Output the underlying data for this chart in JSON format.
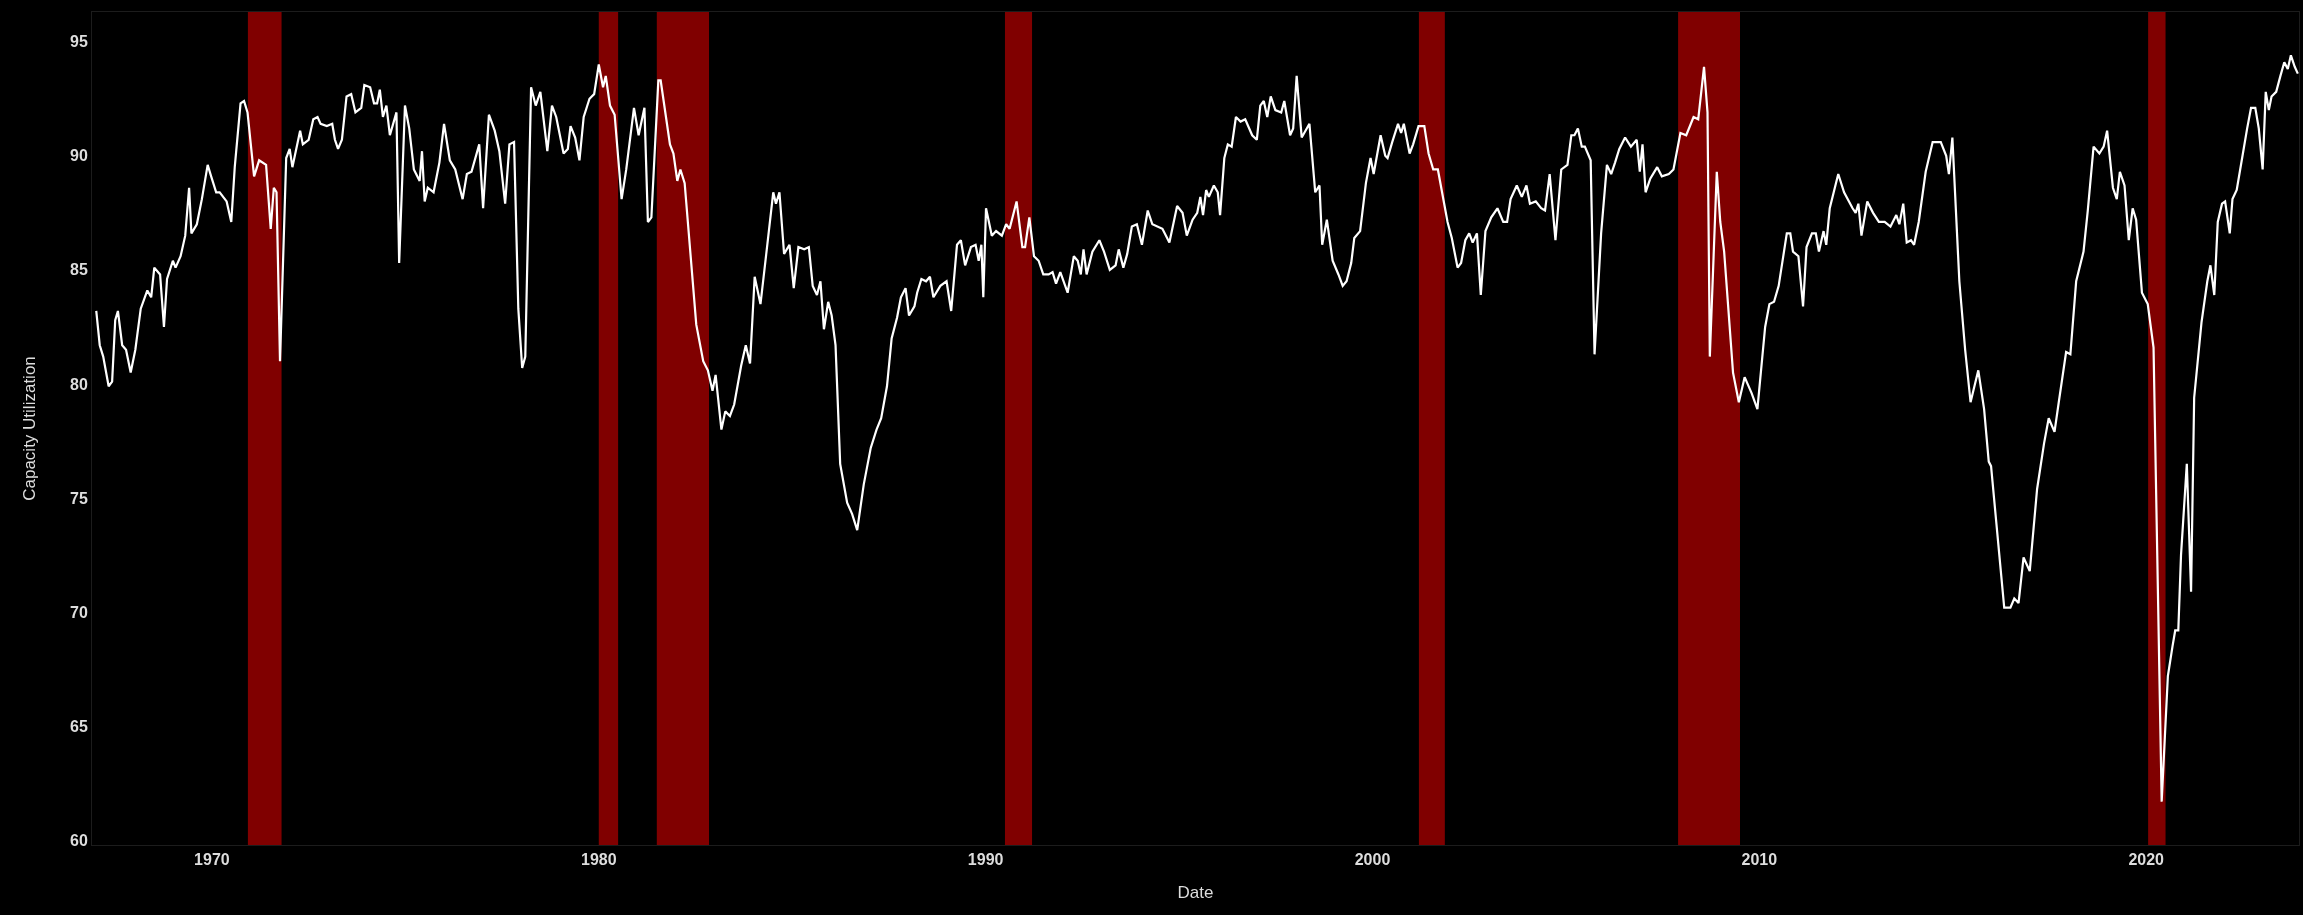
{
  "chart_data": {
    "type": "line",
    "xlabel": "Date",
    "ylabel": "Capacity Utilization",
    "xlim": [
      1966.9,
      2023.95
    ],
    "xticks": [
      1970,
      1980,
      1990,
      2000,
      2010,
      2020
    ],
    "ylim": [
      59.8,
      96.3
    ],
    "yticks": [
      60,
      65,
      70,
      75,
      80,
      85,
      90,
      95
    ],
    "grid": false,
    "marker": "none",
    "line_style": "solid",
    "bands": [
      {
        "axis": "x",
        "from": 1970.93,
        "to": 1971.8,
        "color": "#800000"
      },
      {
        "axis": "x",
        "from": 1980.0,
        "to": 1980.5,
        "color": "#800000"
      },
      {
        "axis": "x",
        "from": 1981.5,
        "to": 1982.85,
        "color": "#800000"
      },
      {
        "axis": "x",
        "from": 1990.5,
        "to": 1991.2,
        "color": "#800000"
      },
      {
        "axis": "x",
        "from": 2001.2,
        "to": 2001.87,
        "color": "#800000"
      },
      {
        "axis": "x",
        "from": 2007.9,
        "to": 2009.5,
        "color": "#800000"
      },
      {
        "axis": "x",
        "from": 2020.05,
        "to": 2020.5,
        "color": "#800000"
      }
    ],
    "series": [
      {
        "color": "#ffffff",
        "x": [
          1967.01,
          1967.1,
          1967.19,
          1967.33,
          1967.42,
          1967.5,
          1967.57,
          1967.68,
          1967.78,
          1967.9,
          1968.02,
          1968.16,
          1968.33,
          1968.43,
          1968.51,
          1968.66,
          1968.76,
          1968.84,
          1968.99,
          1969.06,
          1969.19,
          1969.31,
          1969.41,
          1969.47,
          1969.61,
          1969.74,
          1969.89,
          1969.98,
          1970.11,
          1970.2,
          1970.38,
          1970.5,
          1970.59,
          1970.74,
          1970.83,
          1970.92,
          1971.09,
          1971.22,
          1971.4,
          1971.52,
          1971.6,
          1971.67,
          1971.76,
          1971.92,
          1972.01,
          1972.08,
          1972.28,
          1972.35,
          1972.5,
          1972.62,
          1972.73,
          1972.81,
          1972.97,
          1973.11,
          1973.18,
          1973.26,
          1973.36,
          1973.48,
          1973.6,
          1973.71,
          1973.86,
          1973.94,
          1974.09,
          1974.19,
          1974.27,
          1974.34,
          1974.42,
          1974.51,
          1974.6,
          1974.77,
          1974.84,
          1974.99,
          1975.1,
          1975.22,
          1975.37,
          1975.43,
          1975.5,
          1975.58,
          1975.73,
          1975.88,
          1976.0,
          1976.15,
          1976.29,
          1976.48,
          1976.59,
          1976.71,
          1976.91,
          1977.01,
          1977.16,
          1977.31,
          1977.43,
          1977.58,
          1977.69,
          1977.81,
          1977.92,
          1978.02,
          1978.1,
          1978.25,
          1978.37,
          1978.49,
          1978.67,
          1978.79,
          1978.9,
          1979.09,
          1979.2,
          1979.27,
          1979.39,
          1979.5,
          1979.61,
          1979.76,
          1979.88,
          1980.0,
          1980.11,
          1980.18,
          1980.29,
          1980.41,
          1980.59,
          1980.71,
          1980.91,
          1981.03,
          1981.18,
          1981.27,
          1981.36,
          1981.54,
          1981.6,
          1981.84,
          1981.93,
          1982.03,
          1982.11,
          1982.22,
          1982.52,
          1982.7,
          1982.82,
          1982.94,
          1983.02,
          1983.17,
          1983.27,
          1983.39,
          1983.5,
          1983.68,
          1983.8,
          1983.91,
          1984.03,
          1984.18,
          1984.37,
          1984.51,
          1984.58,
          1984.67,
          1984.79,
          1984.93,
          1985.04,
          1985.16,
          1985.31,
          1985.43,
          1985.53,
          1985.64,
          1985.73,
          1985.82,
          1985.93,
          1986.02,
          1986.12,
          1986.24,
          1986.42,
          1986.55,
          1986.68,
          1986.85,
          1987.03,
          1987.18,
          1987.3,
          1987.45,
          1987.57,
          1987.71,
          1987.81,
          1987.93,
          1988.02,
          1988.16,
          1988.23,
          1988.34,
          1988.46,
          1988.56,
          1988.65,
          1988.83,
          1988.99,
          1989.11,
          1989.26,
          1989.36,
          1989.47,
          1989.62,
          1989.74,
          1989.82,
          1989.89,
          1989.94,
          1990.01,
          1990.16,
          1990.27,
          1990.42,
          1990.53,
          1990.62,
          1990.8,
          1990.95,
          1991.02,
          1991.13,
          1991.25,
          1991.37,
          1991.49,
          1991.63,
          1991.73,
          1991.82,
          1991.93,
          1992.12,
          1992.28,
          1992.38,
          1992.46,
          1992.53,
          1992.61,
          1992.76,
          1992.94,
          1993.06,
          1993.21,
          1993.36,
          1993.44,
          1993.56,
          1993.66,
          1993.78,
          1993.91,
          1994.04,
          1994.19,
          1994.31,
          1994.57,
          1994.75,
          1994.95,
          1995.09,
          1995.2,
          1995.35,
          1995.47,
          1995.55,
          1995.62,
          1995.7,
          1995.77,
          1995.9,
          1996.0,
          1996.06,
          1996.17,
          1996.26,
          1996.36,
          1996.47,
          1996.59,
          1996.71,
          1996.89,
          1997.01,
          1997.1,
          1997.19,
          1997.28,
          1997.37,
          1997.49,
          1997.64,
          1997.72,
          1997.87,
          1997.95,
          1998.04,
          1998.17,
          1998.37,
          1998.52,
          1998.63,
          1998.7,
          1998.82,
          1998.97,
          1999.12,
          1999.23,
          1999.33,
          1999.45,
          1999.53,
          1999.68,
          1999.83,
          1999.95,
          2000.03,
          2000.21,
          2000.33,
          2000.39,
          2000.51,
          2000.66,
          2000.74,
          2000.81,
          2000.96,
          2001.05,
          2001.19,
          2001.34,
          2001.45,
          2001.57,
          2001.69,
          2001.94,
          2002.05,
          2002.2,
          2002.29,
          2002.4,
          2002.5,
          2002.59,
          2002.7,
          2002.8,
          2002.92,
          2003.07,
          2003.23,
          2003.38,
          2003.48,
          2003.57,
          2003.73,
          2003.86,
          2003.98,
          2004.07,
          2004.22,
          2004.36,
          2004.46,
          2004.58,
          2004.73,
          2004.88,
          2005.04,
          2005.14,
          2005.22,
          2005.31,
          2005.41,
          2005.49,
          2005.64,
          2005.74,
          2005.91,
          2006.06,
          2006.17,
          2006.27,
          2006.38,
          2006.53,
          2006.68,
          2006.83,
          2006.91,
          2006.98,
          2007.06,
          2007.18,
          2007.36,
          2007.48,
          2007.66,
          2007.78,
          2007.96,
          2008.11,
          2008.3,
          2008.42,
          2008.57,
          2008.66,
          2008.72,
          2008.9,
          2008.99,
          2009.09,
          2009.32,
          2009.47,
          2009.62,
          2009.8,
          2009.95,
          2010.15,
          2010.26,
          2010.38,
          2010.5,
          2010.71,
          2010.8,
          2010.87,
          2011.01,
          2011.13,
          2011.22,
          2011.36,
          2011.46,
          2011.54,
          2011.66,
          2011.73,
          2011.82,
          2012.04,
          2012.19,
          2012.41,
          2012.49,
          2012.56,
          2012.64,
          2012.79,
          2012.94,
          2013.09,
          2013.24,
          2013.39,
          2013.54,
          2013.62,
          2013.72,
          2013.81,
          2013.92,
          2014.0,
          2014.12,
          2014.3,
          2014.48,
          2014.69,
          2014.83,
          2014.9,
          2014.99,
          2015.17,
          2015.32,
          2015.46,
          2015.66,
          2015.81,
          2015.93,
          2015.99,
          2016.33,
          2016.49,
          2016.59,
          2016.7,
          2016.83,
          2016.99,
          2017.18,
          2017.36,
          2017.48,
          2017.63,
          2017.74,
          2017.93,
          2018.04,
          2018.19,
          2018.38,
          2018.49,
          2018.64,
          2018.79,
          2018.9,
          2018.99,
          2019.14,
          2019.24,
          2019.32,
          2019.44,
          2019.55,
          2019.65,
          2019.74,
          2019.89,
          2020.04,
          2020.19,
          2020.4,
          2020.56,
          2020.68,
          2020.75,
          2020.83,
          2020.9,
          2021.05,
          2021.16,
          2021.24,
          2021.43,
          2021.58,
          2021.66,
          2021.76,
          2021.85,
          2021.96,
          2022.04,
          2022.16,
          2022.23,
          2022.34,
          2022.49,
          2022.61,
          2022.71,
          2022.82,
          2022.91,
          2023.01,
          2023.09,
          2023.17,
          2023.24,
          2023.36,
          2023.47,
          2023.57,
          2023.66,
          2023.74,
          2023.84,
          2023.92
        ],
        "values": [
          83.2,
          81.7,
          81.2,
          79.9,
          80.1,
          82.8,
          83.2,
          81.7,
          81.5,
          80.5,
          81.5,
          83.3,
          84.1,
          83.8,
          85.1,
          84.8,
          82.5,
          84.6,
          85.4,
          85.1,
          85.6,
          86.5,
          88.6,
          86.6,
          87.0,
          88.1,
          89.6,
          89.1,
          88.4,
          88.4,
          88.0,
          87.1,
          89.5,
          92.3,
          92.4,
          91.9,
          89.1,
          89.8,
          89.6,
          86.8,
          88.6,
          88.4,
          81.0,
          89.9,
          90.3,
          89.5,
          91.1,
          90.5,
          90.7,
          91.6,
          91.7,
          91.4,
          91.3,
          91.4,
          90.7,
          90.3,
          90.7,
          92.6,
          92.7,
          91.9,
          92.1,
          93.1,
          93.0,
          92.3,
          92.3,
          92.9,
          91.7,
          92.2,
          90.9,
          91.9,
          85.3,
          92.2,
          91.2,
          89.4,
          88.9,
          90.2,
          88.0,
          88.6,
          88.4,
          89.7,
          91.4,
          89.8,
          89.4,
          88.1,
          89.2,
          89.3,
          90.5,
          87.7,
          91.8,
          91.1,
          90.2,
          87.9,
          90.5,
          90.6,
          83.3,
          80.7,
          81.2,
          93.0,
          92.2,
          92.8,
          90.2,
          92.2,
          91.7,
          90.1,
          90.3,
          91.3,
          90.8,
          89.8,
          91.7,
          92.5,
          92.7,
          94.0,
          93.0,
          93.5,
          92.2,
          91.8,
          88.1,
          89.4,
          92.1,
          90.9,
          92.1,
          87.1,
          87.3,
          93.3,
          93.3,
          90.5,
          90.1,
          88.9,
          89.4,
          88.8,
          82.6,
          81.0,
          80.6,
          79.7,
          80.4,
          78.0,
          78.8,
          78.6,
          79.1,
          80.8,
          81.7,
          80.9,
          84.7,
          83.5,
          86.3,
          88.4,
          87.9,
          88.4,
          85.7,
          86.1,
          84.2,
          86.0,
          85.9,
          86.0,
          84.3,
          83.9,
          84.5,
          82.4,
          83.6,
          83.0,
          81.7,
          76.5,
          74.8,
          74.3,
          73.6,
          75.6,
          77.2,
          78.0,
          78.5,
          79.9,
          82.0,
          82.9,
          83.8,
          84.2,
          83.0,
          83.4,
          84.0,
          84.6,
          84.5,
          84.7,
          83.8,
          84.3,
          84.5,
          83.2,
          86.1,
          86.3,
          85.2,
          86.0,
          86.1,
          85.4,
          86.1,
          83.8,
          87.7,
          86.5,
          86.7,
          86.5,
          87.0,
          86.8,
          88.0,
          86.0,
          86.0,
          87.3,
          85.6,
          85.4,
          84.8,
          84.8,
          84.9,
          84.4,
          84.9,
          84.0,
          85.6,
          85.4,
          84.8,
          85.9,
          84.8,
          85.8,
          86.3,
          85.8,
          85.0,
          85.2,
          85.9,
          85.1,
          85.7,
          86.9,
          87.0,
          86.1,
          87.6,
          87.0,
          86.8,
          86.2,
          87.8,
          87.5,
          86.5,
          87.2,
          87.5,
          88.2,
          87.4,
          88.5,
          88.2,
          88.7,
          88.4,
          87.4,
          89.9,
          90.5,
          90.4,
          91.7,
          91.5,
          91.6,
          90.9,
          90.7,
          92.2,
          92.4,
          91.7,
          92.6,
          92.0,
          91.9,
          92.4,
          90.9,
          91.2,
          93.5,
          90.8,
          91.4,
          88.4,
          88.7,
          86.1,
          87.2,
          85.4,
          84.8,
          84.3,
          84.5,
          85.3,
          86.4,
          86.7,
          88.8,
          89.9,
          89.2,
          90.9,
          90.0,
          89.9,
          90.6,
          91.4,
          91.0,
          91.4,
          90.1,
          90.5,
          91.3,
          91.3,
          90.1,
          89.4,
          89.4,
          87.1,
          86.4,
          85.1,
          85.3,
          86.3,
          86.6,
          86.2,
          86.6,
          83.9,
          86.7,
          87.3,
          87.7,
          87.1,
          87.1,
          88.1,
          88.7,
          88.2,
          88.7,
          87.9,
          88.0,
          87.7,
          87.6,
          89.2,
          86.3,
          89.4,
          89.6,
          90.9,
          90.9,
          91.2,
          90.4,
          90.4,
          89.8,
          81.3,
          86.6,
          89.6,
          89.2,
          89.7,
          90.3,
          90.8,
          90.4,
          90.7,
          89.3,
          90.5,
          88.4,
          89.0,
          89.5,
          89.1,
          89.2,
          89.4,
          91.0,
          90.9,
          91.7,
          91.6,
          93.9,
          91.9,
          81.2,
          89.3,
          87.1,
          85.8,
          80.5,
          79.2,
          80.3,
          79.6,
          78.9,
          82.5,
          83.5,
          83.6,
          84.3,
          86.6,
          86.6,
          85.8,
          85.6,
          83.4,
          86.0,
          86.6,
          86.6,
          85.8,
          86.7,
          86.1,
          87.7,
          89.2,
          88.4,
          87.7,
          87.5,
          87.9,
          86.5,
          88.0,
          87.5,
          87.1,
          87.1,
          86.9,
          87.4,
          87.0,
          87.9,
          86.2,
          86.3,
          86.1,
          87.1,
          89.3,
          90.6,
          90.6,
          90.0,
          89.2,
          90.8,
          84.5,
          81.5,
          79.2,
          80.6,
          78.9,
          76.6,
          76.4,
          70.2,
          70.2,
          70.6,
          70.4,
          72.4,
          71.8,
          75.4,
          77.4,
          78.5,
          77.9,
          79.2,
          81.4,
          81.3,
          84.5,
          85.8,
          87.6,
          90.4,
          90.1,
          90.4,
          91.1,
          88.6,
          88.1,
          89.3,
          88.7,
          86.3,
          87.7,
          87.2,
          84.0,
          83.5,
          81.6,
          61.7,
          67.2,
          68.5,
          69.2,
          69.2,
          72.5,
          76.5,
          70.9,
          79.4,
          82.7,
          84.5,
          85.2,
          83.9,
          87.1,
          87.9,
          88.0,
          86.6,
          88.1,
          88.5,
          90.0,
          91.2,
          92.1,
          92.1,
          91.2,
          89.4,
          92.8,
          92.0,
          92.6,
          92.8,
          93.5,
          94.1,
          93.8,
          94.4,
          93.9,
          93.6
        ]
      }
    ]
  }
}
